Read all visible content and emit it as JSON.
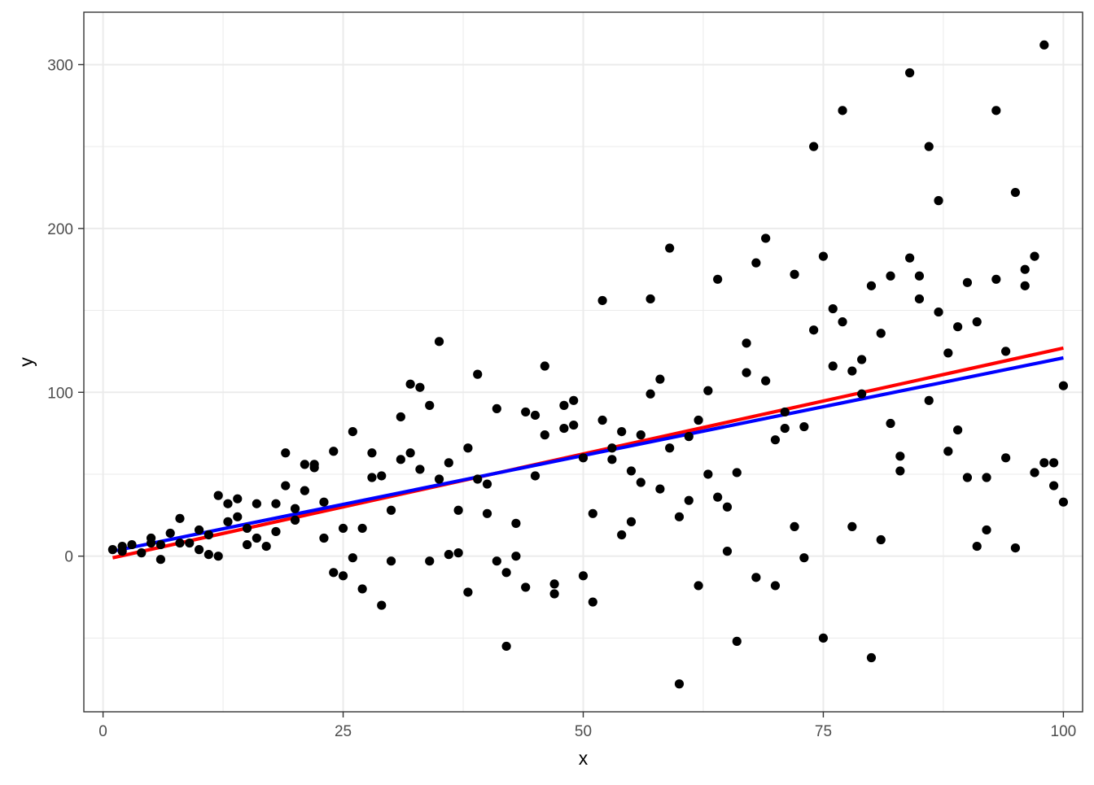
{
  "chart_data": {
    "type": "scatter",
    "title": "",
    "xlabel": "x",
    "ylabel": "y",
    "xlim": [
      -2,
      102
    ],
    "ylim": [
      -95,
      332
    ],
    "x_ticks": [
      0,
      25,
      50,
      75,
      100
    ],
    "y_ticks": [
      0,
      100,
      200,
      300
    ],
    "x_tick_labels": [
      "0",
      "25",
      "50",
      "75",
      "100"
    ],
    "y_tick_labels": [
      "0",
      "100",
      "200",
      "300"
    ],
    "x_minor_ticks": [
      12.5,
      37.5,
      62.5,
      87.5
    ],
    "y_minor_ticks": [
      -50,
      50,
      150,
      250
    ],
    "grid": true,
    "theme": "bw",
    "colors": {
      "points": "#000000",
      "line_1": "#ff0000",
      "line_2": "#0000ff"
    },
    "points": [
      [
        1,
        4
      ],
      [
        2,
        6
      ],
      [
        2,
        3
      ],
      [
        3,
        7
      ],
      [
        4,
        2
      ],
      [
        5,
        11
      ],
      [
        5,
        8
      ],
      [
        6,
        -2
      ],
      [
        6,
        7
      ],
      [
        7,
        14
      ],
      [
        8,
        23
      ],
      [
        8,
        8
      ],
      [
        9,
        8
      ],
      [
        10,
        16
      ],
      [
        10,
        4
      ],
      [
        11,
        1
      ],
      [
        11,
        13
      ],
      [
        12,
        37
      ],
      [
        12,
        0
      ],
      [
        13,
        21
      ],
      [
        13,
        32
      ],
      [
        14,
        24
      ],
      [
        14,
        35
      ],
      [
        15,
        7
      ],
      [
        15,
        17
      ],
      [
        16,
        11
      ],
      [
        16,
        32
      ],
      [
        17,
        6
      ],
      [
        18,
        15
      ],
      [
        18,
        32
      ],
      [
        19,
        63
      ],
      [
        19,
        43
      ],
      [
        20,
        22
      ],
      [
        20,
        29
      ],
      [
        21,
        56
      ],
      [
        21,
        40
      ],
      [
        22,
        54
      ],
      [
        22,
        56
      ],
      [
        23,
        33
      ],
      [
        23,
        11
      ],
      [
        24,
        64
      ],
      [
        24,
        -10
      ],
      [
        25,
        17
      ],
      [
        25,
        -12
      ],
      [
        26,
        76
      ],
      [
        26,
        -1
      ],
      [
        27,
        17
      ],
      [
        27,
        -20
      ],
      [
        28,
        63
      ],
      [
        28,
        48
      ],
      [
        29,
        49
      ],
      [
        29,
        -30
      ],
      [
        30,
        28
      ],
      [
        30,
        -3
      ],
      [
        31,
        85
      ],
      [
        31,
        59
      ],
      [
        32,
        105
      ],
      [
        32,
        63
      ],
      [
        33,
        103
      ],
      [
        33,
        53
      ],
      [
        34,
        92
      ],
      [
        34,
        -3
      ],
      [
        35,
        131
      ],
      [
        35,
        47
      ],
      [
        36,
        57
      ],
      [
        36,
        1
      ],
      [
        37,
        28
      ],
      [
        37,
        2
      ],
      [
        38,
        66
      ],
      [
        38,
        -22
      ],
      [
        39,
        111
      ],
      [
        39,
        47
      ],
      [
        40,
        44
      ],
      [
        40,
        26
      ],
      [
        41,
        90
      ],
      [
        41,
        -3
      ],
      [
        42,
        -55
      ],
      [
        42,
        -10
      ],
      [
        43,
        20
      ],
      [
        43,
        0
      ],
      [
        44,
        88
      ],
      [
        44,
        -19
      ],
      [
        45,
        86
      ],
      [
        45,
        49
      ],
      [
        46,
        116
      ],
      [
        46,
        74
      ],
      [
        47,
        -17
      ],
      [
        47,
        -23
      ],
      [
        48,
        78
      ],
      [
        48,
        92
      ],
      [
        49,
        95
      ],
      [
        49,
        80
      ],
      [
        50,
        60
      ],
      [
        50,
        -12
      ],
      [
        51,
        26
      ],
      [
        51,
        -28
      ],
      [
        52,
        156
      ],
      [
        52,
        83
      ],
      [
        53,
        66
      ],
      [
        53,
        59
      ],
      [
        54,
        76
      ],
      [
        54,
        13
      ],
      [
        55,
        52
      ],
      [
        55,
        21
      ],
      [
        56,
        74
      ],
      [
        56,
        45
      ],
      [
        57,
        157
      ],
      [
        57,
        99
      ],
      [
        58,
        108
      ],
      [
        58,
        41
      ],
      [
        59,
        188
      ],
      [
        59,
        66
      ],
      [
        60,
        -78
      ],
      [
        60,
        24
      ],
      [
        61,
        73
      ],
      [
        61,
        34
      ],
      [
        62,
        83
      ],
      [
        62,
        -18
      ],
      [
        63,
        101
      ],
      [
        63,
        50
      ],
      [
        64,
        169
      ],
      [
        64,
        36
      ],
      [
        65,
        30
      ],
      [
        65,
        3
      ],
      [
        66,
        51
      ],
      [
        66,
        -52
      ],
      [
        67,
        130
      ],
      [
        67,
        112
      ],
      [
        68,
        179
      ],
      [
        68,
        -13
      ],
      [
        69,
        194
      ],
      [
        69,
        107
      ],
      [
        70,
        71
      ],
      [
        70,
        -18
      ],
      [
        71,
        78
      ],
      [
        71,
        88
      ],
      [
        72,
        172
      ],
      [
        72,
        18
      ],
      [
        73,
        79
      ],
      [
        73,
        -1
      ],
      [
        74,
        250
      ],
      [
        74,
        138
      ],
      [
        75,
        183
      ],
      [
        75,
        -50
      ],
      [
        76,
        151
      ],
      [
        76,
        116
      ],
      [
        77,
        272
      ],
      [
        77,
        143
      ],
      [
        78,
        113
      ],
      [
        78,
        18
      ],
      [
        79,
        120
      ],
      [
        79,
        99
      ],
      [
        80,
        165
      ],
      [
        80,
        -62
      ],
      [
        81,
        136
      ],
      [
        81,
        10
      ],
      [
        82,
        171
      ],
      [
        82,
        81
      ],
      [
        83,
        61
      ],
      [
        83,
        52
      ],
      [
        84,
        295
      ],
      [
        84,
        182
      ],
      [
        85,
        171
      ],
      [
        85,
        157
      ],
      [
        86,
        250
      ],
      [
        86,
        95
      ],
      [
        87,
        217
      ],
      [
        87,
        149
      ],
      [
        88,
        124
      ],
      [
        88,
        64
      ],
      [
        89,
        140
      ],
      [
        89,
        77
      ],
      [
        90,
        167
      ],
      [
        90,
        48
      ],
      [
        91,
        143
      ],
      [
        91,
        6
      ],
      [
        92,
        48
      ],
      [
        92,
        16
      ],
      [
        93,
        272
      ],
      [
        93,
        169
      ],
      [
        94,
        125
      ],
      [
        94,
        60
      ],
      [
        95,
        222
      ],
      [
        95,
        5
      ],
      [
        96,
        175
      ],
      [
        96,
        165
      ],
      [
        97,
        183
      ],
      [
        97,
        51
      ],
      [
        98,
        312
      ],
      [
        98,
        57
      ],
      [
        99,
        57
      ],
      [
        99,
        43
      ],
      [
        100,
        104
      ],
      [
        100,
        33
      ]
    ],
    "lines": [
      {
        "color": "#ff0000",
        "x": [
          1,
          100
        ],
        "y": [
          -1,
          127
        ]
      },
      {
        "color": "#0000ff",
        "x": [
          1,
          100
        ],
        "y": [
          3,
          121
        ]
      }
    ]
  }
}
